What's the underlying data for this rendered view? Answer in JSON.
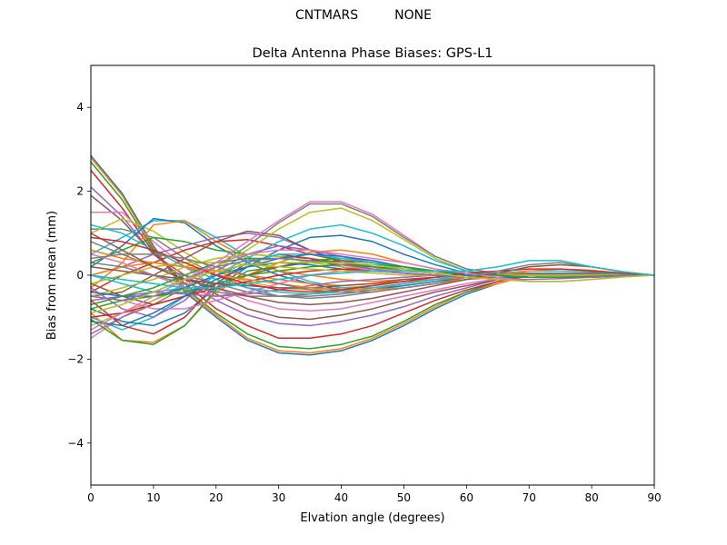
{
  "figure": {
    "suptitle": "CNTMARS         NONE"
  },
  "chart_data": {
    "type": "line",
    "title": "Delta Antenna Phase Biases: GPS-L1",
    "xlabel": "Elvation angle (degrees)",
    "ylabel": "Bias from mean (mm)",
    "xlim": [
      0,
      90
    ],
    "ylim": [
      -5,
      5
    ],
    "xticks": [
      0,
      10,
      20,
      30,
      40,
      50,
      60,
      70,
      80,
      90
    ],
    "yticks": [
      -4,
      -2,
      0,
      2,
      4
    ],
    "xtick_labels": [
      "0",
      "10",
      "20",
      "30",
      "40",
      "50",
      "60",
      "70",
      "80",
      "90"
    ],
    "ytick_labels": [
      "−4",
      "−2",
      "0",
      "2",
      "4"
    ],
    "grid": false,
    "legend": false,
    "x": [
      0,
      5,
      10,
      15,
      20,
      25,
      30,
      35,
      40,
      45,
      50,
      55,
      60,
      65,
      70,
      75,
      80,
      85,
      90
    ],
    "colors": [
      "#1f77b4",
      "#ff7f0e",
      "#2ca02c",
      "#d62728",
      "#9467bd",
      "#8c564b",
      "#e377c2",
      "#7f7f7f",
      "#bcbd22",
      "#17becf"
    ],
    "series": [
      {
        "values": [
          2.85,
          1.95,
          0.7,
          -0.4,
          -1.0,
          -1.55,
          -1.85,
          -1.9,
          -1.8,
          -1.55,
          -1.2,
          -0.8,
          -0.45,
          -0.2,
          0.0,
          0.05,
          0.05,
          0.02,
          0
        ]
      },
      {
        "values": [
          2.8,
          1.9,
          0.65,
          -0.35,
          -0.95,
          -1.5,
          -1.8,
          -1.85,
          -1.75,
          -1.5,
          -1.15,
          -0.75,
          -0.4,
          -0.2,
          0.0,
          0.05,
          0.05,
          0.02,
          0
        ]
      },
      {
        "values": [
          2.7,
          1.8,
          0.6,
          -0.3,
          -0.9,
          -1.4,
          -1.7,
          -1.75,
          -1.65,
          -1.45,
          -1.1,
          -0.7,
          -0.4,
          -0.15,
          0.02,
          0.05,
          0.05,
          0.02,
          0
        ]
      },
      {
        "values": [
          2.5,
          1.6,
          0.55,
          -0.2,
          -0.8,
          -1.2,
          -1.5,
          -1.5,
          -1.4,
          -1.2,
          -0.9,
          -0.6,
          -0.35,
          -0.15,
          0.0,
          0.03,
          0.03,
          0.01,
          0
        ]
      },
      {
        "values": [
          2.1,
          1.4,
          0.5,
          -0.1,
          -0.6,
          -0.95,
          -1.15,
          -1.2,
          -1.1,
          -0.95,
          -0.75,
          -0.5,
          -0.3,
          -0.1,
          0.0,
          0.03,
          0.03,
          0.01,
          0
        ]
      },
      {
        "values": [
          1.9,
          1.3,
          0.5,
          0.0,
          -0.45,
          -0.8,
          -1.0,
          -1.05,
          -0.95,
          -0.8,
          -0.6,
          -0.4,
          -0.25,
          -0.1,
          0.0,
          0.02,
          0.02,
          0.01,
          0
        ]
      },
      {
        "values": [
          1.5,
          1.5,
          0.8,
          0.2,
          -0.3,
          -0.6,
          -0.8,
          -0.85,
          -0.8,
          -0.65,
          -0.5,
          -0.35,
          -0.2,
          -0.08,
          0.0,
          0.02,
          0.02,
          0.01,
          0
        ]
      },
      {
        "values": [
          1.1,
          1.1,
          0.9,
          0.4,
          0.0,
          -0.3,
          -0.5,
          -0.55,
          -0.5,
          -0.4,
          -0.3,
          -0.2,
          -0.1,
          -0.05,
          0.0,
          0.01,
          0.01,
          0.0,
          0
        ]
      },
      {
        "values": [
          1.0,
          1.35,
          1.05,
          0.55,
          0.1,
          -0.15,
          -0.3,
          -0.35,
          -0.3,
          -0.25,
          -0.15,
          -0.1,
          -0.05,
          0.0,
          0.0,
          0.0,
          0.0,
          0.0,
          0
        ]
      },
      {
        "values": [
          0.5,
          0.9,
          1.3,
          1.3,
          0.9,
          0.45,
          0.1,
          -0.15,
          -0.3,
          -0.3,
          -0.2,
          -0.1,
          -0.05,
          0.0,
          0.02,
          0.03,
          0.02,
          0.01,
          0
        ]
      },
      {
        "values": [
          0.2,
          0.7,
          1.35,
          1.25,
          0.7,
          0.3,
          0.0,
          -0.2,
          -0.35,
          -0.35,
          -0.25,
          -0.15,
          -0.05,
          0.0,
          0.02,
          0.02,
          0.02,
          0.01,
          0
        ]
      },
      {
        "values": [
          -0.3,
          0.3,
          1.2,
          1.3,
          0.8,
          0.4,
          0.1,
          0.0,
          -0.1,
          -0.15,
          -0.1,
          -0.05,
          0.0,
          0.0,
          0.0,
          0.0,
          0.0,
          0.0,
          0
        ]
      },
      {
        "values": [
          0.3,
          0.6,
          0.9,
          0.8,
          0.6,
          0.5,
          0.45,
          0.4,
          0.3,
          0.2,
          0.1,
          0.05,
          0.0,
          0.0,
          0.0,
          0.0,
          0.0,
          0.0,
          0
        ]
      },
      {
        "values": [
          -0.4,
          0.0,
          0.3,
          0.6,
          0.8,
          0.85,
          0.7,
          0.5,
          0.35,
          0.2,
          0.1,
          0.05,
          0.0,
          0.0,
          0.0,
          0.0,
          0.0,
          0.0,
          0
        ]
      },
      {
        "values": [
          0.0,
          0.2,
          0.5,
          0.7,
          0.9,
          1.0,
          0.9,
          0.6,
          0.35,
          0.2,
          0.1,
          0.05,
          0.0,
          0.0,
          0.0,
          0.0,
          0.0,
          0.0,
          0
        ]
      },
      {
        "values": [
          -0.5,
          -0.4,
          0.0,
          0.4,
          0.8,
          1.05,
          0.95,
          0.6,
          0.3,
          0.15,
          0.1,
          0.05,
          0.0,
          0.0,
          0.0,
          0.0,
          0.0,
          0.0,
          0
        ]
      },
      {
        "values": [
          -1.5,
          -1.0,
          -0.6,
          -0.2,
          0.3,
          0.8,
          1.3,
          1.75,
          1.75,
          1.45,
          0.95,
          0.45,
          0.15,
          0.05,
          0.0,
          -0.05,
          -0.05,
          -0.02,
          0
        ]
      },
      {
        "values": [
          -1.4,
          -1.0,
          -0.7,
          -0.3,
          0.2,
          0.7,
          1.25,
          1.7,
          1.7,
          1.4,
          0.9,
          0.45,
          0.15,
          0.05,
          0.0,
          -0.05,
          -0.05,
          -0.02,
          0
        ]
      },
      {
        "values": [
          -1.2,
          -0.9,
          -0.6,
          -0.3,
          0.2,
          0.6,
          1.1,
          1.5,
          1.6,
          1.3,
          0.85,
          0.4,
          0.1,
          0.0,
          0.0,
          -0.03,
          -0.03,
          -0.01,
          0
        ]
      },
      {
        "values": [
          -1.0,
          -1.3,
          -1.0,
          -0.5,
          0.0,
          0.4,
          0.8,
          1.1,
          1.2,
          1.0,
          0.7,
          0.35,
          0.1,
          0.0,
          0.0,
          0.0,
          0.0,
          0.0,
          0
        ]
      },
      {
        "values": [
          -0.8,
          -1.1,
          -1.2,
          -0.9,
          -0.3,
          0.2,
          0.6,
          0.9,
          0.95,
          0.8,
          0.5,
          0.25,
          0.05,
          0.0,
          0.0,
          0.0,
          0.0,
          0.0,
          0
        ]
      },
      {
        "values": [
          -0.9,
          -1.55,
          -1.6,
          -1.2,
          -0.4,
          0.0,
          0.3,
          0.55,
          0.6,
          0.5,
          0.3,
          0.15,
          0.0,
          0.0,
          0.0,
          0.0,
          0.0,
          0.0,
          0
        ]
      },
      {
        "values": [
          -1.05,
          -1.55,
          -1.65,
          -1.2,
          -0.35,
          0.1,
          0.2,
          0.35,
          0.4,
          0.3,
          0.2,
          0.1,
          0.0,
          0.0,
          0.0,
          0.0,
          0.0,
          0.0,
          0
        ]
      },
      {
        "values": [
          -0.6,
          -1.2,
          -1.4,
          -1.0,
          -0.2,
          0.3,
          0.5,
          0.4,
          0.2,
          0.1,
          0.05,
          0.0,
          0.0,
          0.0,
          0.0,
          0.0,
          0.0,
          0.0,
          0
        ]
      },
      {
        "values": [
          -0.3,
          -0.8,
          -1.0,
          -0.6,
          0.1,
          0.5,
          0.7,
          0.6,
          0.45,
          0.3,
          0.15,
          0.05,
          0.0,
          0.0,
          0.0,
          0.0,
          0.0,
          0.0,
          0
        ]
      },
      {
        "values": [
          -0.2,
          -0.5,
          -0.7,
          -0.5,
          -0.2,
          0.0,
          0.2,
          0.3,
          0.35,
          0.3,
          0.2,
          0.1,
          0.05,
          0.0,
          0.0,
          0.0,
          0.0,
          0.0,
          0
        ]
      },
      {
        "values": [
          0.5,
          0.3,
          0.0,
          -0.3,
          -0.5,
          -0.4,
          -0.2,
          0.0,
          0.1,
          0.15,
          0.1,
          0.05,
          0.0,
          0.0,
          0.0,
          0.0,
          0.0,
          0.0,
          0
        ]
      },
      {
        "values": [
          0.8,
          0.5,
          0.2,
          0.0,
          -0.2,
          -0.4,
          -0.5,
          -0.5,
          -0.45,
          -0.35,
          -0.2,
          -0.1,
          0.0,
          0.05,
          0.05,
          0.05,
          0.03,
          0.01,
          0
        ]
      },
      {
        "values": [
          -0.5,
          -0.3,
          -0.1,
          0.2,
          0.4,
          0.5,
          0.45,
          0.3,
          0.2,
          0.15,
          0.1,
          0.05,
          0.0,
          0.0,
          0.0,
          0.0,
          0.0,
          0.0,
          0
        ]
      },
      {
        "values": [
          0.0,
          -0.2,
          -0.4,
          -0.3,
          0.0,
          0.3,
          0.5,
          0.5,
          0.4,
          0.3,
          0.2,
          0.1,
          0.05,
          0.0,
          0.0,
          0.0,
          0.0,
          0.0,
          0
        ]
      },
      {
        "values": [
          -0.4,
          -0.5,
          -0.5,
          -0.3,
          0.0,
          0.2,
          0.3,
          0.25,
          0.15,
          0.1,
          0.05,
          0.0,
          0.0,
          0.0,
          0.0,
          0.0,
          0.0,
          0.0,
          0
        ]
      },
      {
        "values": [
          0.0,
          0.2,
          0.3,
          0.2,
          0.1,
          0.0,
          -0.1,
          -0.2,
          -0.25,
          -0.2,
          -0.15,
          -0.1,
          -0.05,
          0.0,
          0.05,
          0.05,
          0.05,
          0.02,
          0
        ]
      },
      {
        "values": [
          -0.8,
          -0.6,
          -0.5,
          -0.4,
          -0.2,
          0.0,
          0.1,
          0.2,
          0.25,
          0.2,
          0.15,
          0.1,
          0.05,
          0.0,
          0.0,
          0.0,
          0.0,
          0.0,
          0
        ]
      },
      {
        "values": [
          -1.0,
          -0.9,
          -0.7,
          -0.5,
          -0.3,
          -0.15,
          0.0,
          0.1,
          0.15,
          0.1,
          0.05,
          0.0,
          0.0,
          0.0,
          0.0,
          0.0,
          0.0,
          0.0,
          0
        ]
      },
      {
        "values": [
          -0.6,
          -0.5,
          -0.4,
          -0.45,
          -0.5,
          -0.45,
          -0.35,
          -0.25,
          -0.15,
          -0.1,
          -0.05,
          0.0,
          0.0,
          0.0,
          0.0,
          0.0,
          0.0,
          0.0,
          0
        ]
      },
      {
        "values": [
          0.2,
          0.1,
          0.0,
          -0.1,
          -0.2,
          -0.25,
          -0.3,
          -0.3,
          -0.25,
          -0.2,
          -0.1,
          -0.05,
          0.0,
          0.0,
          0.05,
          0.05,
          0.05,
          0.02,
          0
        ]
      },
      {
        "values": [
          -0.5,
          -0.6,
          -0.8,
          -0.8,
          -0.6,
          -0.4,
          -0.2,
          0.0,
          0.1,
          0.1,
          0.05,
          0.0,
          0.0,
          0.0,
          0.0,
          0.0,
          0.0,
          0.0,
          0
        ]
      },
      {
        "values": [
          0.3,
          0.2,
          0.0,
          -0.2,
          -0.4,
          -0.5,
          -0.5,
          -0.45,
          -0.35,
          -0.25,
          -0.15,
          -0.05,
          0.0,
          0.05,
          0.05,
          0.05,
          0.03,
          0.01,
          0
        ]
      },
      {
        "values": [
          -0.2,
          0.0,
          0.2,
          0.3,
          0.3,
          0.25,
          0.2,
          0.15,
          0.1,
          0.05,
          0.0,
          0.0,
          0.0,
          0.0,
          0.0,
          0.0,
          0.0,
          0.0,
          0
        ]
      },
      {
        "values": [
          1.2,
          1.0,
          0.6,
          0.2,
          -0.1,
          -0.3,
          -0.4,
          -0.45,
          -0.4,
          -0.3,
          -0.2,
          -0.1,
          0.0,
          0.05,
          0.1,
          0.1,
          0.08,
          0.03,
          0
        ]
      },
      {
        "values": [
          -1.1,
          -1.2,
          -0.9,
          -0.5,
          -0.1,
          0.2,
          0.4,
          0.5,
          0.45,
          0.35,
          0.2,
          0.1,
          0.0,
          -0.05,
          -0.05,
          -0.05,
          -0.03,
          -0.01,
          0
        ]
      },
      {
        "values": [
          0.6,
          0.4,
          0.3,
          0.2,
          0.0,
          -0.1,
          -0.2,
          -0.3,
          -0.35,
          -0.35,
          -0.3,
          -0.2,
          -0.1,
          0.0,
          0.1,
          0.15,
          0.12,
          0.05,
          0
        ]
      },
      {
        "values": [
          -0.7,
          -0.5,
          -0.3,
          0.0,
          0.3,
          0.4,
          0.4,
          0.35,
          0.3,
          0.25,
          0.2,
          0.1,
          0.05,
          0.0,
          -0.05,
          -0.05,
          -0.03,
          -0.01,
          0
        ]
      },
      {
        "values": [
          0.9,
          0.8,
          0.6,
          0.3,
          0.0,
          -0.2,
          -0.35,
          -0.4,
          -0.35,
          -0.25,
          -0.15,
          -0.05,
          0.05,
          0.1,
          0.15,
          0.15,
          0.1,
          0.05,
          0
        ]
      },
      {
        "values": [
          -0.5,
          -0.6,
          -0.4,
          -0.1,
          0.2,
          0.35,
          0.4,
          0.35,
          0.25,
          0.15,
          0.05,
          0.0,
          -0.05,
          -0.1,
          -0.1,
          -0.08,
          -0.05,
          -0.02,
          0
        ]
      },
      {
        "values": [
          1.0,
          0.6,
          0.2,
          -0.1,
          -0.3,
          -0.5,
          -0.65,
          -0.7,
          -0.65,
          -0.55,
          -0.4,
          -0.25,
          -0.1,
          0.05,
          0.2,
          0.25,
          0.2,
          0.08,
          0
        ]
      },
      {
        "values": [
          -1.3,
          -0.9,
          -0.5,
          -0.1,
          0.3,
          0.5,
          0.6,
          0.6,
          0.5,
          0.4,
          0.3,
          0.15,
          0.05,
          -0.05,
          -0.15,
          -0.15,
          -0.1,
          -0.04,
          0
        ]
      },
      {
        "values": [
          0.4,
          0.5,
          0.5,
          0.4,
          0.2,
          0.0,
          -0.2,
          -0.35,
          -0.4,
          -0.4,
          -0.3,
          -0.2,
          -0.05,
          0.1,
          0.25,
          0.3,
          0.2,
          0.08,
          0
        ]
      },
      {
        "values": [
          -0.9,
          -0.7,
          -0.4,
          -0.1,
          0.1,
          0.25,
          0.3,
          0.3,
          0.3,
          0.25,
          0.15,
          0.05,
          -0.05,
          -0.1,
          -0.15,
          -0.15,
          -0.1,
          -0.04,
          0
        ]
      },
      {
        "values": [
          0.0,
          -0.1,
          -0.2,
          -0.3,
          -0.3,
          -0.2,
          -0.1,
          0.0,
          0.05,
          0.1,
          0.1,
          0.1,
          0.1,
          0.2,
          0.35,
          0.35,
          0.2,
          0.08,
          0
        ]
      }
    ]
  }
}
